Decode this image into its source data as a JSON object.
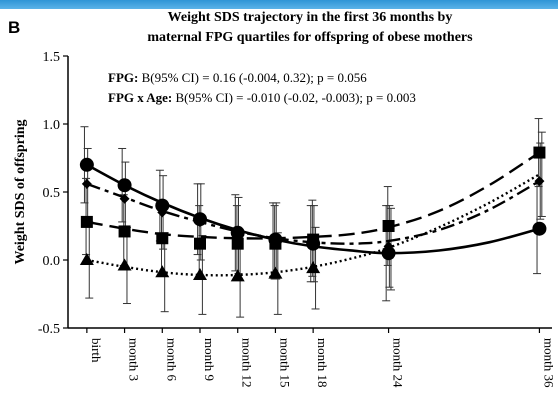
{
  "panel_letter": "B",
  "chart_data": {
    "type": "line",
    "title_lines": [
      "Weight SDS trajectory in the first 36 months by",
      "maternal FPG quartiles for offspring of obese mothers"
    ],
    "ylabel": "Weight SDS of offspring",
    "ylim": [
      -0.5,
      1.5
    ],
    "yticks": [
      -0.5,
      0.0,
      0.5,
      1.0,
      1.5
    ],
    "ytick_labels": [
      "-0.5",
      "0.0",
      "0.5",
      "1.0",
      "1.5"
    ],
    "x_months": [
      0,
      3,
      6,
      9,
      12,
      15,
      18,
      24,
      36
    ],
    "x_tick_labels": [
      "birth",
      "month 3",
      "month 6",
      "month 9",
      "month 12",
      "month 15",
      "month 18",
      "month 24",
      "month 36"
    ],
    "x_range": [
      -1.5,
      37
    ],
    "grid": false,
    "annotations": [
      {
        "bold": "FPG:",
        "rest": " B(95% CI) = 0.16 (-0.004, 0.32); p = 0.056"
      },
      {
        "bold": "FPG x Age:",
        "rest": " B(95% CI) = -0.010 (-0.02, -0.003); p = 0.003"
      }
    ],
    "series": [
      {
        "marker": "circle",
        "dash": "solid",
        "color": "#000000",
        "points": [
          [
            0,
            0.7
          ],
          [
            3,
            0.55
          ],
          [
            6,
            0.4
          ],
          [
            9,
            0.3
          ],
          [
            12,
            0.2
          ],
          [
            15,
            0.15
          ],
          [
            18,
            0.12
          ],
          [
            24,
            0.05
          ],
          [
            36,
            0.23
          ]
        ],
        "errors": [
          [
            0,
            0.42,
            0.98
          ],
          [
            3,
            0.28,
            0.82
          ],
          [
            6,
            0.14,
            0.66
          ],
          [
            9,
            0.04,
            0.56
          ],
          [
            12,
            -0.08,
            0.48
          ],
          [
            15,
            -0.12,
            0.42
          ],
          [
            18,
            -0.16,
            0.4
          ],
          [
            24,
            -0.3,
            0.4
          ],
          [
            36,
            -0.1,
            0.56
          ]
        ],
        "curve": [
          [
            0,
            0.7
          ],
          [
            3,
            0.55
          ],
          [
            6,
            0.42
          ],
          [
            9,
            0.31
          ],
          [
            12,
            0.22
          ],
          [
            15,
            0.15
          ],
          [
            18,
            0.1
          ],
          [
            21,
            0.07
          ],
          [
            24,
            0.05
          ],
          [
            28,
            0.07
          ],
          [
            32,
            0.13
          ],
          [
            36,
            0.23
          ]
        ]
      },
      {
        "marker": "square",
        "dash": "long",
        "color": "#000000",
        "points": [
          [
            0,
            0.28
          ],
          [
            3,
            0.21
          ],
          [
            6,
            0.16
          ],
          [
            9,
            0.12
          ],
          [
            12,
            0.12
          ],
          [
            15,
            0.12
          ],
          [
            18,
            0.15
          ],
          [
            24,
            0.25
          ],
          [
            36,
            0.79
          ]
        ],
        "errors": [
          [
            0,
            0.04,
            0.6
          ],
          [
            3,
            -0.04,
            0.48
          ],
          [
            6,
            -0.1,
            0.42
          ],
          [
            9,
            -0.14,
            0.4
          ],
          [
            12,
            -0.14,
            0.4
          ],
          [
            15,
            -0.14,
            0.4
          ],
          [
            18,
            -0.12,
            0.44
          ],
          [
            24,
            -0.04,
            0.54
          ],
          [
            36,
            0.54,
            1.04
          ]
        ],
        "curve": [
          [
            0,
            0.28
          ],
          [
            3,
            0.23
          ],
          [
            6,
            0.19
          ],
          [
            9,
            0.17
          ],
          [
            12,
            0.16
          ],
          [
            15,
            0.16
          ],
          [
            18,
            0.17
          ],
          [
            21,
            0.19
          ],
          [
            24,
            0.24
          ],
          [
            28,
            0.36
          ],
          [
            32,
            0.55
          ],
          [
            36,
            0.79
          ]
        ]
      },
      {
        "marker": "diamond",
        "dash": "dashdot",
        "color": "#000000",
        "points": [
          [
            0,
            0.56
          ],
          [
            3,
            0.45
          ],
          [
            6,
            0.35
          ],
          [
            9,
            0.28
          ],
          [
            12,
            0.18
          ],
          [
            15,
            0.14
          ],
          [
            18,
            0.12
          ],
          [
            24,
            0.1
          ],
          [
            36,
            0.58
          ]
        ],
        "errors": [
          [
            0,
            0.3,
            0.82
          ],
          [
            3,
            0.18,
            0.72
          ],
          [
            6,
            0.08,
            0.62
          ],
          [
            9,
            0.0,
            0.56
          ],
          [
            12,
            -0.1,
            0.46
          ],
          [
            15,
            -0.14,
            0.42
          ],
          [
            18,
            -0.16,
            0.4
          ],
          [
            24,
            -0.2,
            0.4
          ],
          [
            36,
            0.3,
            0.86
          ]
        ],
        "curve": [
          [
            0,
            0.56
          ],
          [
            3,
            0.46
          ],
          [
            6,
            0.36
          ],
          [
            9,
            0.28
          ],
          [
            12,
            0.21
          ],
          [
            15,
            0.16
          ],
          [
            18,
            0.13
          ],
          [
            21,
            0.12
          ],
          [
            24,
            0.14
          ],
          [
            28,
            0.22
          ],
          [
            32,
            0.37
          ],
          [
            36,
            0.58
          ]
        ]
      },
      {
        "marker": "triangle",
        "dash": "dotted",
        "color": "#000000",
        "points": [
          [
            0,
            0.0
          ],
          [
            3,
            -0.04
          ],
          [
            6,
            -0.09
          ],
          [
            9,
            -0.11
          ],
          [
            12,
            -0.12
          ],
          [
            15,
            -0.1
          ],
          [
            18,
            -0.06
          ],
          [
            24,
            0.08
          ],
          [
            36,
            0.63
          ]
        ],
        "errors": [
          [
            0,
            -0.28,
            0.28
          ],
          [
            3,
            -0.32,
            0.24
          ],
          [
            6,
            -0.38,
            0.2
          ],
          [
            9,
            -0.4,
            0.18
          ],
          [
            12,
            -0.42,
            0.18
          ],
          [
            15,
            -0.4,
            0.2
          ],
          [
            18,
            -0.36,
            0.24
          ],
          [
            24,
            -0.22,
            0.38
          ],
          [
            36,
            0.32,
            0.94
          ]
        ],
        "marker_months": [
          0,
          3,
          6,
          9,
          12,
          15,
          18
        ],
        "curve": [
          [
            0,
            0.0
          ],
          [
            3,
            -0.05
          ],
          [
            6,
            -0.09
          ],
          [
            9,
            -0.11
          ],
          [
            12,
            -0.11
          ],
          [
            15,
            -0.09
          ],
          [
            18,
            -0.05
          ],
          [
            21,
            0.01
          ],
          [
            24,
            0.09
          ],
          [
            28,
            0.24
          ],
          [
            32,
            0.42
          ],
          [
            36,
            0.63
          ]
        ]
      }
    ]
  }
}
